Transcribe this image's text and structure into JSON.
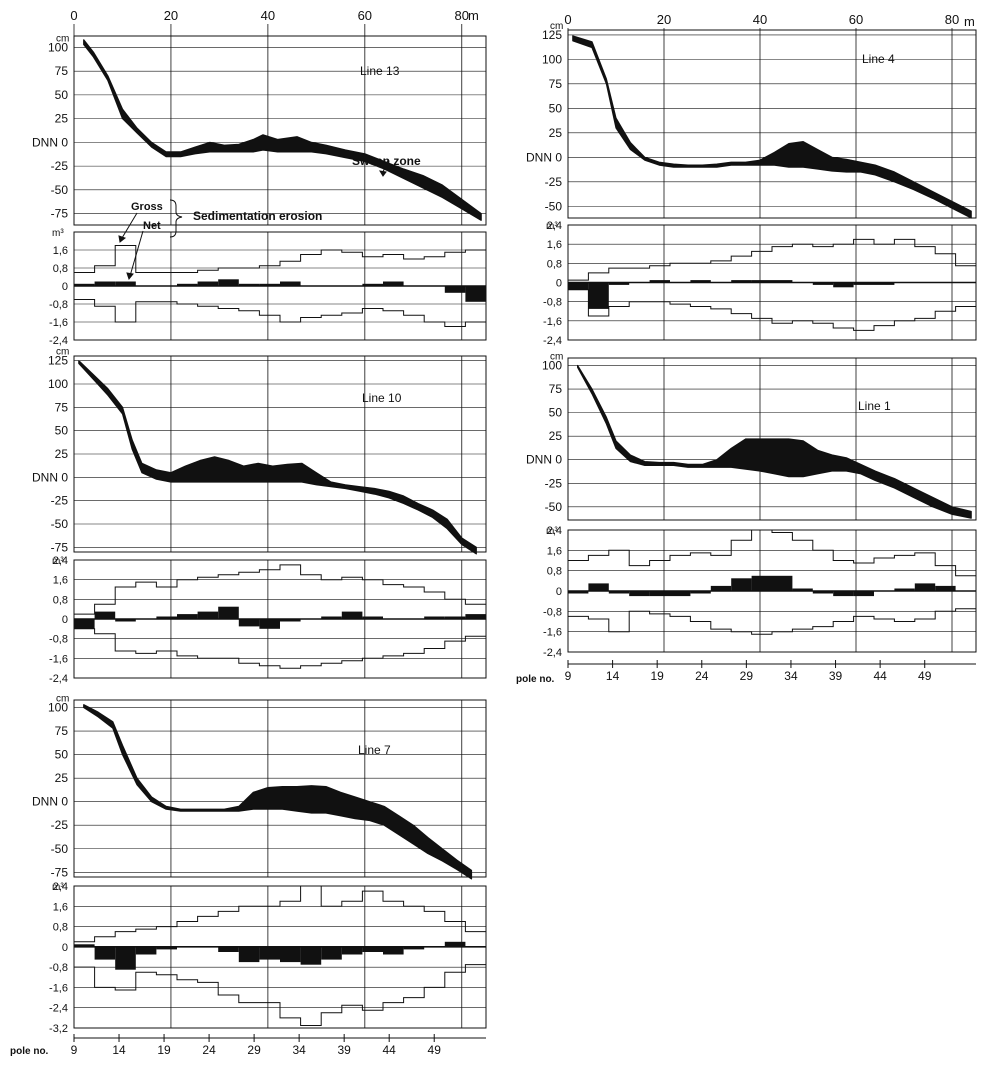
{
  "annotations": {
    "sweep_zone": "Sweep zone",
    "gross": "Gross",
    "net": "Net",
    "sed_erosion": "Sedimentation erosion"
  },
  "axis_text": {
    "cm_unit": "cm",
    "m3_unit": "m³",
    "m_unit": "m",
    "dnn": "DNN",
    "pole_no": "pole no."
  },
  "chart_data": [
    {
      "type": "area",
      "line": "Line 13",
      "panel": "top-left",
      "distance_ticks": [
        0,
        20,
        40,
        60,
        80
      ],
      "profile_ylim": [
        -87,
        112
      ],
      "profile_yticks": [
        100,
        75,
        50,
        25,
        0,
        -25,
        -50,
        -75
      ],
      "profile_upper_x": [
        2,
        4,
        7,
        10,
        13,
        16,
        19,
        22,
        25,
        28,
        31,
        34,
        37,
        39,
        42,
        46,
        49,
        52,
        56,
        60,
        64,
        68,
        72,
        76,
        80,
        84
      ],
      "profile_upper_y": [
        108,
        95,
        70,
        35,
        15,
        0,
        -10,
        -10,
        -5,
        0,
        -3,
        -2,
        3,
        8,
        3,
        6,
        0,
        -3,
        -8,
        -12,
        -20,
        -28,
        -35,
        -45,
        -60,
        -75
      ],
      "profile_lower_y": [
        103,
        90,
        65,
        25,
        10,
        -5,
        -15,
        -15,
        -12,
        -10,
        -10,
        -10,
        -10,
        -8,
        -10,
        -10,
        -10,
        -12,
        -16,
        -20,
        -28,
        -38,
        -48,
        -58,
        -70,
        -82
      ],
      "volume_ylim": [
        -2.4,
        2.4
      ],
      "volume_yticks": [
        1.6,
        0.8,
        0,
        -0.8,
        -1.6,
        -2.4
      ],
      "pole_ticks": [],
      "volume_cells": 20,
      "volume_gross_sed": [
        0.6,
        0.9,
        1.8,
        0.6,
        0.6,
        0.6,
        0.7,
        0.8,
        0.8,
        0.9,
        1.1,
        1.4,
        1.6,
        1.5,
        1.3,
        1.4,
        1.2,
        1.3,
        1.5,
        1.6
      ],
      "volume_gross_ero": [
        -0.6,
        -0.9,
        -1.6,
        -0.7,
        -0.7,
        -0.8,
        -0.9,
        -1.0,
        -1.1,
        -1.3,
        -1.6,
        -1.4,
        -1.3,
        -1.2,
        -1.0,
        -1.1,
        -1.3,
        -1.6,
        -1.8,
        -1.6
      ],
      "volume_net": [
        0.1,
        0.2,
        0.2,
        0,
        0,
        0.1,
        0.2,
        0.3,
        0.1,
        0.1,
        0.2,
        0,
        0,
        0,
        0.1,
        0.2,
        0,
        0,
        -0.3,
        -0.7
      ]
    },
    {
      "type": "area",
      "line": "Line 4",
      "panel": "top-right",
      "distance_ticks": [
        0,
        20,
        40,
        60,
        80
      ],
      "profile_ylim": [
        -62,
        130
      ],
      "profile_yticks": [
        125,
        100,
        75,
        50,
        25,
        0,
        -25,
        -50
      ],
      "profile_upper_x": [
        1,
        5,
        8,
        10,
        13,
        16,
        19,
        22,
        25,
        28,
        31,
        34,
        37,
        40,
        43,
        46,
        49,
        52,
        55,
        58,
        61,
        64,
        68,
        72,
        76,
        80,
        84
      ],
      "profile_upper_y": [
        124,
        118,
        80,
        40,
        15,
        0,
        -5,
        -7,
        -8,
        -8,
        -7,
        -5,
        -5,
        -3,
        5,
        14,
        16,
        8,
        0,
        -2,
        -5,
        -8,
        -15,
        -25,
        -35,
        -45,
        -55
      ],
      "profile_lower_y": [
        119,
        112,
        75,
        30,
        8,
        -3,
        -8,
        -10,
        -10,
        -10,
        -10,
        -8,
        -8,
        -8,
        -8,
        -10,
        -10,
        -12,
        -14,
        -15,
        -15,
        -18,
        -25,
        -33,
        -42,
        -52,
        -62
      ],
      "volume_ylim": [
        -2.4,
        2.4
      ],
      "volume_yticks": [
        2.4,
        1.6,
        0.8,
        0,
        -0.8,
        -1.6,
        -2.4
      ],
      "pole_ticks": [],
      "volume_cells": 20,
      "volume_gross_sed": [
        0.1,
        0.4,
        0.6,
        0.6,
        0.7,
        0.8,
        0.8,
        0.9,
        1.1,
        1.3,
        1.5,
        1.6,
        1.5,
        1.6,
        1.8,
        1.6,
        1.8,
        1.5,
        1.2,
        0.7
      ],
      "volume_gross_ero": [
        -0.3,
        -1.4,
        -1.0,
        -0.8,
        -0.8,
        -0.9,
        -1.0,
        -1.1,
        -1.3,
        -1.5,
        -1.7,
        -1.6,
        -1.7,
        -1.9,
        -2.0,
        -1.8,
        -1.6,
        -1.5,
        -1.2,
        -1.0
      ],
      "volume_net": [
        -0.3,
        -1.1,
        -0.1,
        0,
        0.1,
        0,
        0.1,
        0,
        0.1,
        0.1,
        0.1,
        0,
        -0.1,
        -0.2,
        -0.1,
        -0.1,
        0,
        0,
        0,
        0
      ]
    },
    {
      "type": "area",
      "line": "Line 10",
      "panel": "middle-left",
      "distance_ticks": [],
      "profile_ylim": [
        -80,
        130
      ],
      "profile_yticks": [
        125,
        100,
        75,
        50,
        25,
        0,
        -25,
        -50,
        -75
      ],
      "profile_upper_x": [
        1,
        4,
        7,
        10,
        12,
        14,
        17,
        20,
        23,
        26,
        29,
        32,
        35,
        38,
        41,
        44,
        47,
        50,
        53,
        56,
        59,
        62,
        65,
        68,
        71,
        74,
        77,
        80,
        83
      ],
      "profile_upper_y": [
        125,
        110,
        95,
        75,
        40,
        15,
        8,
        5,
        12,
        18,
        22,
        18,
        12,
        15,
        12,
        14,
        15,
        5,
        -5,
        -8,
        -10,
        -12,
        -15,
        -20,
        -28,
        -35,
        -45,
        -65,
        -75
      ],
      "profile_lower_y": [
        122,
        105,
        88,
        68,
        30,
        5,
        -2,
        -5,
        -5,
        -5,
        -5,
        -5,
        -5,
        -5,
        -5,
        -5,
        -5,
        -8,
        -10,
        -12,
        -15,
        -18,
        -22,
        -28,
        -35,
        -43,
        -55,
        -72,
        -82
      ],
      "volume_ylim": [
        -2.4,
        2.4
      ],
      "volume_yticks": [
        2.4,
        1.6,
        0.8,
        0,
        -0.8,
        -1.6,
        -2.4
      ],
      "pole_ticks": [],
      "volume_cells": 20,
      "volume_gross_sed": [
        0.2,
        0.6,
        1.3,
        1.5,
        1.3,
        1.6,
        1.7,
        1.8,
        1.9,
        2.0,
        2.2,
        1.8,
        1.6,
        1.7,
        1.6,
        1.4,
        1.3,
        1.1,
        0.8,
        0.6
      ],
      "volume_gross_ero": [
        -0.4,
        -0.6,
        -1.3,
        -1.4,
        -1.3,
        -1.5,
        -1.6,
        -1.6,
        -1.8,
        -1.9,
        -2.0,
        -1.9,
        -1.8,
        -1.7,
        -1.6,
        -1.5,
        -1.4,
        -1.2,
        -0.9,
        -0.7
      ],
      "volume_net": [
        -0.4,
        0.3,
        -0.1,
        0,
        0.1,
        0.2,
        0.3,
        0.5,
        -0.3,
        -0.4,
        -0.1,
        0,
        0.1,
        0.3,
        0.1,
        0,
        0,
        0.1,
        0.1,
        0.2
      ]
    },
    {
      "type": "area",
      "line": "Line 1",
      "panel": "middle-right",
      "distance_ticks": [],
      "profile_ylim": [
        -64,
        108
      ],
      "profile_yticks": [
        100,
        75,
        50,
        25,
        0,
        -25,
        -50
      ],
      "profile_upper_x": [
        2,
        5,
        8,
        10,
        13,
        16,
        19,
        22,
        25,
        28,
        31,
        34,
        37,
        40,
        43,
        46,
        49,
        52,
        55,
        58,
        61,
        64,
        68,
        72,
        76,
        80,
        84
      ],
      "profile_upper_y": [
        100,
        75,
        45,
        20,
        5,
        -2,
        -3,
        -3,
        -5,
        -5,
        0,
        12,
        22,
        22,
        22,
        22,
        20,
        10,
        5,
        2,
        -5,
        -12,
        -20,
        -30,
        -40,
        -50,
        -55
      ],
      "profile_lower_y": [
        98,
        70,
        38,
        12,
        -2,
        -6,
        -6,
        -6,
        -8,
        -8,
        -8,
        -8,
        -10,
        -12,
        -15,
        -18,
        -18,
        -15,
        -12,
        -12,
        -15,
        -22,
        -30,
        -40,
        -50,
        -58,
        -62
      ],
      "volume_ylim": [
        -2.4,
        2.4
      ],
      "volume_yticks": [
        2.4,
        1.6,
        0.8,
        0,
        -0.8,
        -1.6,
        -2.4
      ],
      "pole_ticks": [
        9,
        14,
        19,
        24,
        29,
        34,
        39,
        44,
        49
      ],
      "volume_cells": 20,
      "volume_gross_sed": [
        1.2,
        1.4,
        1.6,
        1.0,
        1.2,
        1.4,
        1.5,
        1.4,
        2.0,
        2.4,
        2.3,
        2.0,
        1.6,
        1.2,
        1.1,
        1.3,
        1.4,
        1.5,
        1.0,
        0.6
      ],
      "volume_gross_ero": [
        -1.0,
        -1.1,
        -1.6,
        -0.8,
        -0.9,
        -1.0,
        -1.2,
        -1.5,
        -1.6,
        -1.7,
        -1.6,
        -1.5,
        -1.4,
        -1.2,
        -1.0,
        -1.1,
        -1.2,
        -1.1,
        -0.8,
        -0.7
      ],
      "volume_net": [
        -0.1,
        0.3,
        -0.1,
        -0.2,
        -0.2,
        -0.2,
        -0.1,
        0.2,
        0.5,
        0.6,
        0.6,
        0.1,
        -0.1,
        -0.2,
        -0.2,
        0,
        0.1,
        0.3,
        0.2,
        0
      ]
    },
    {
      "type": "area",
      "line": "Line 7",
      "panel": "bottom-left",
      "distance_ticks": [],
      "profile_ylim": [
        -80,
        108
      ],
      "profile_yticks": [
        100,
        75,
        50,
        25,
        0,
        -25,
        -50,
        -75
      ],
      "profile_upper_x": [
        2,
        5,
        8,
        10,
        13,
        16,
        19,
        22,
        25,
        28,
        31,
        34,
        37,
        40,
        43,
        46,
        49,
        52,
        55,
        58,
        61,
        64,
        67,
        70,
        73,
        76,
        79,
        82
      ],
      "profile_upper_y": [
        103,
        95,
        85,
        60,
        25,
        5,
        -5,
        -8,
        -8,
        -8,
        -8,
        -5,
        10,
        15,
        16,
        16,
        17,
        16,
        10,
        5,
        0,
        -5,
        -15,
        -25,
        -38,
        -50,
        -62,
        -73
      ],
      "profile_lower_y": [
        100,
        90,
        78,
        50,
        18,
        0,
        -8,
        -10,
        -10,
        -10,
        -10,
        -10,
        -8,
        -8,
        -8,
        -10,
        -12,
        -12,
        -15,
        -18,
        -20,
        -25,
        -35,
        -45,
        -55,
        -63,
        -72,
        -82
      ],
      "volume_ylim": [
        -3.2,
        2.4
      ],
      "volume_yticks": [
        2.4,
        1.6,
        0.8,
        0,
        -0.8,
        -1.6,
        -2.4,
        -3.2
      ],
      "pole_ticks": [
        9,
        14,
        19,
        24,
        29,
        34,
        39,
        44,
        49
      ],
      "volume_cells": 20,
      "volume_gross_sed": [
        0.2,
        0.4,
        0.6,
        0.7,
        0.8,
        1.0,
        1.2,
        1.4,
        1.6,
        1.6,
        1.8,
        2.4,
        1.6,
        1.8,
        2.2,
        1.8,
        1.6,
        1.4,
        1.0,
        0.6
      ],
      "volume_gross_ero": [
        -0.8,
        -1.6,
        -1.7,
        -1.0,
        -1.1,
        -1.3,
        -1.4,
        -1.9,
        -2.2,
        -2.2,
        -2.8,
        -3.1,
        -2.6,
        -2.3,
        -2.5,
        -2.2,
        -2.0,
        -1.6,
        -1.0,
        -0.7
      ],
      "volume_net": [
        0.1,
        -0.5,
        -0.9,
        -0.3,
        -0.1,
        0,
        0,
        -0.2,
        -0.6,
        -0.5,
        -0.6,
        -0.7,
        -0.5,
        -0.3,
        -0.2,
        -0.3,
        -0.1,
        0,
        0.2,
        0
      ]
    }
  ]
}
